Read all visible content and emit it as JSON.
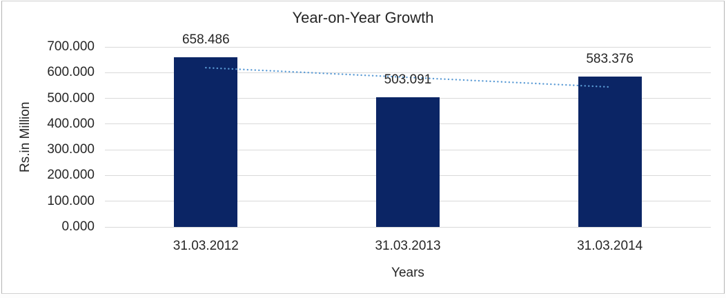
{
  "chart_data": {
    "type": "bar",
    "title": "Year-on-Year Growth",
    "categories": [
      "31.03.2012",
      "31.03.2013",
      "31.03.2014"
    ],
    "values": [
      658.486,
      503.091,
      583.376
    ],
    "data_labels": [
      "658.486",
      "503.091",
      "583.376"
    ],
    "xlabel": "Years",
    "ylabel": "Rs.in Million",
    "ylim": [
      0,
      700
    ],
    "ytick_labels": [
      "0.000",
      "100.000",
      "200.000",
      "300.000",
      "400.000",
      "500.000",
      "600.000",
      "700.000"
    ],
    "grid": true,
    "legend": "none",
    "bar_color": "#0b2565",
    "gridline_color": "#d9d9d9",
    "text_color": "#262626",
    "border_color": "#b3b3b3",
    "trendline": {
      "type": "linear",
      "style": "dotted",
      "color": "#5b9bd5",
      "start_value": 619.2,
      "end_value": 544.1
    }
  }
}
